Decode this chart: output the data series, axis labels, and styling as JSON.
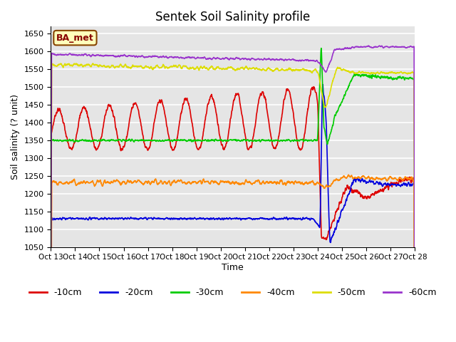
{
  "title": "Sentek Soil Salinity profile",
  "xlabel": "Time",
  "ylabel": "Soil salinity (? unit)",
  "ylim": [
    1050,
    1670
  ],
  "yticks": [
    1050,
    1100,
    1150,
    1200,
    1250,
    1300,
    1350,
    1400,
    1450,
    1500,
    1550,
    1600,
    1650
  ],
  "background_color": "#e5e5e5",
  "grid_color": "white",
  "legend_label": "BA_met",
  "series_labels": [
    "-10cm",
    "-20cm",
    "-30cm",
    "-40cm",
    "-50cm",
    "-60cm"
  ],
  "series_colors": [
    "#dd0000",
    "#0000dd",
    "#00cc00",
    "#ff8800",
    "#dddd00",
    "#9933cc"
  ],
  "x_tick_labels": [
    "Oct 13",
    "Oct 14",
    "Oct 15",
    "Oct 16",
    "Oct 17",
    "Oct 18",
    "Oct 19",
    "Oct 20",
    "Oct 21",
    "Oct 22",
    "Oct 23",
    "Oct 24",
    "Oct 25",
    "Oct 26",
    "Oct 27",
    "Oct 28"
  ]
}
